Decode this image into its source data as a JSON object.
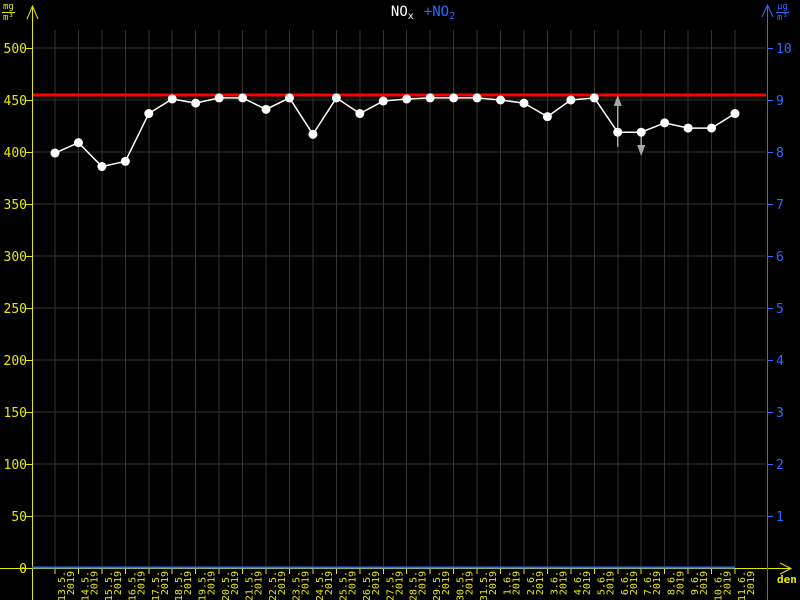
{
  "axes": {
    "left": {
      "unit_num": "mg",
      "unit_den": "m³",
      "color": "#e9e900",
      "ticks": [
        0,
        50,
        100,
        150,
        200,
        250,
        300,
        350,
        400,
        450,
        500
      ]
    },
    "right": {
      "unit_num": "µg",
      "unit_den": "m³",
      "color": "#2b6bff",
      "ticks": [
        1,
        2,
        3,
        4,
        5,
        6,
        7,
        8,
        9,
        10
      ]
    },
    "x": {
      "label": "den",
      "color": "#e9e900"
    }
  },
  "chart_data": {
    "type": "line",
    "title_series": [
      {
        "text": "NO",
        "sub": "x",
        "color": "#ffffff"
      },
      {
        "text": "+NO",
        "sub": "2",
        "color": "#2b6bff"
      }
    ],
    "categories": [
      "13.5.",
      "14.5.",
      "15.5.",
      "16.5.",
      "17.5.",
      "18.5.",
      "19.5.",
      "20.5.",
      "21.5.",
      "22.5.",
      "23.5.",
      "24.5.",
      "25.5.",
      "26.5.",
      "27.5.",
      "28.5.",
      "29.5.",
      "30.5.",
      "31.5.",
      "1.6.",
      "2.6.",
      "3.6.",
      "4.6.",
      "5.6.",
      "6.6.",
      "7.6.",
      "8.6.",
      "9.6.",
      "10.6.",
      "11.6."
    ],
    "category_year": "2019",
    "series": [
      {
        "name": "NOx",
        "axis": "left",
        "color": "#ffffff",
        "values": [
          399,
          409,
          386,
          391,
          437,
          451,
          447,
          452,
          452,
          441,
          452,
          417,
          452,
          437,
          449,
          451,
          452,
          452,
          452,
          450,
          447,
          434,
          450,
          452,
          419,
          419,
          428,
          423,
          423,
          437
        ]
      },
      {
        "name": "NO2",
        "axis": "right",
        "color": "#2b6bff",
        "constant_value": 0
      }
    ],
    "limit_line": {
      "value": 455,
      "color": "#ff0000"
    },
    "annotations": [
      {
        "date": "6.6.",
        "direction": "up",
        "from": 405,
        "to": 452,
        "color": "#a8a8a8"
      },
      {
        "date": "7.6.",
        "direction": "down",
        "from": 416,
        "to": 399,
        "color": "#a8a8a8"
      }
    ],
    "ylim_left": [
      0,
      520
    ],
    "ylim_right": [
      0,
      10.4
    ],
    "grid": true,
    "grid_color": "#343434",
    "background": "#000000"
  }
}
